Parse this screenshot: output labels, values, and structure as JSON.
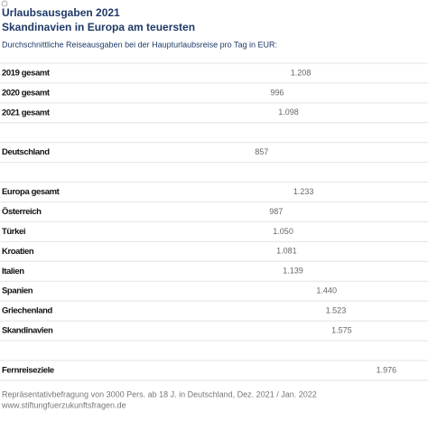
{
  "chart_data": {
    "type": "bar",
    "orientation": "horizontal",
    "title": "Urlaubsausgaben 2021",
    "subtitle": "Skandinavien in Europa am teuersten",
    "description": "Durchschnittliche Reiseausgaben bei der Haupturlaubsreise pro Tag in EUR:",
    "categories": [
      "2019 gesamt",
      "2020 gesamt",
      "2021 gesamt",
      null,
      "Deutschland",
      null,
      "Europa gesamt",
      "Österreich",
      "Türkei",
      "Kroatien",
      "Italien",
      "Spanien",
      "Griechenland",
      "Skandinavien",
      null,
      "Fernreiseziele"
    ],
    "values": [
      1208,
      996,
      1098,
      null,
      857,
      null,
      1233,
      987,
      1050,
      1081,
      1139,
      1440,
      1523,
      1575,
      null,
      1976
    ],
    "value_labels": [
      "1.208",
      "996",
      "1.098",
      null,
      "857",
      null,
      "1.233",
      "987",
      "1.050",
      "1.081",
      "1.139",
      "1.440",
      "1.523",
      "1.575",
      null,
      "1.976"
    ],
    "color": "#ffffff",
    "xlim": [
      0,
      2350
    ],
    "source": "Repräsentativbefragung von 3000 Pers. ab 18 J. in Deutschland, Dez. 2021 / Jan. 2022",
    "url": "www.stiftungfuerzukunftsfragen.de"
  }
}
